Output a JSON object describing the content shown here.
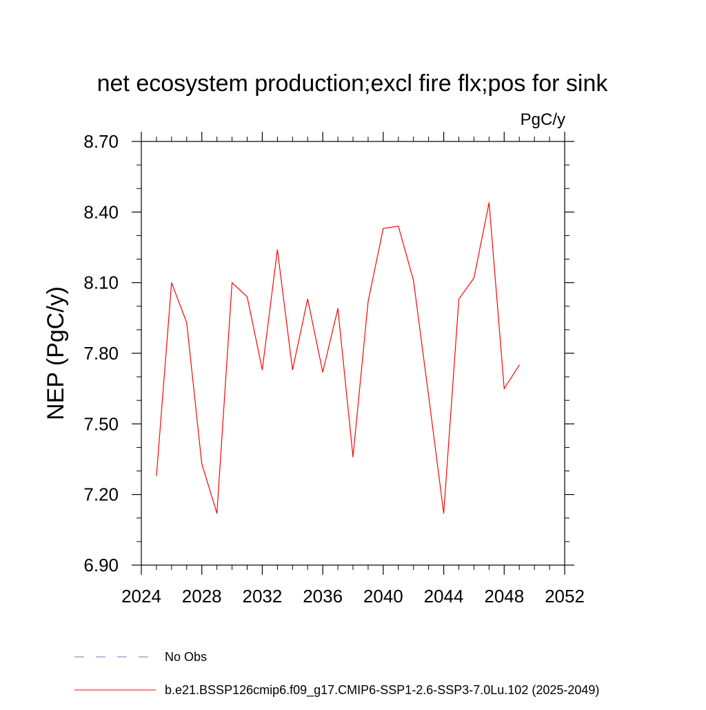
{
  "chart_data": {
    "type": "line",
    "title": "net ecosystem production;excl fire flx;pos for sink",
    "units": "PgC/y",
    "ylabel": "NEP  (PgC/y)",
    "xlabel": "",
    "xlim": [
      2024,
      2052
    ],
    "ylim": [
      6.9,
      8.7
    ],
    "x_ticks": [
      {
        "value": 2024,
        "label": "2024"
      },
      {
        "value": 2028,
        "label": "2028"
      },
      {
        "value": 2032,
        "label": "2032"
      },
      {
        "value": 2036,
        "label": "2036"
      },
      {
        "value": 2040,
        "label": "2040"
      },
      {
        "value": 2044,
        "label": "2044"
      },
      {
        "value": 2048,
        "label": "2048"
      },
      {
        "value": 2052,
        "label": "2052"
      }
    ],
    "y_ticks": [
      {
        "value": 6.9,
        "label": "6.90"
      },
      {
        "value": 7.2,
        "label": "7.20"
      },
      {
        "value": 7.5,
        "label": "7.50"
      },
      {
        "value": 7.8,
        "label": "7.80"
      },
      {
        "value": 8.1,
        "label": "8.10"
      },
      {
        "value": 8.4,
        "label": "8.40"
      },
      {
        "value": 8.7,
        "label": "8.70"
      }
    ],
    "x_minor_step": 1,
    "y_minor_step": 0.1,
    "grid": false,
    "legend_position": "bottom",
    "series": [
      {
        "name": "b.e21.BSSP126cmip6.f09_g17.CMIP6-SSP1-2.6-SSP3-7.0Lu.102 (2025-2049)",
        "color": "#ff0000",
        "style": "solid",
        "x": [
          2025,
          2026,
          2027,
          2028,
          2029,
          2030,
          2031,
          2032,
          2033,
          2034,
          2035,
          2036,
          2037,
          2038,
          2039,
          2040,
          2041,
          2042,
          2043,
          2044,
          2045,
          2046,
          2047,
          2048,
          2049
        ],
        "values": [
          7.28,
          8.1,
          7.93,
          7.33,
          7.12,
          8.1,
          8.04,
          7.73,
          8.24,
          7.73,
          8.03,
          7.72,
          7.99,
          7.36,
          8.02,
          8.33,
          8.34,
          8.11,
          7.62,
          7.12,
          8.03,
          8.12,
          8.44,
          7.65,
          7.75
        ]
      }
    ],
    "legend": [
      {
        "label": "No Obs",
        "color": "#7b6fc9",
        "style": "dashed"
      },
      {
        "label": "b.e21.BSSP126cmip6.f09_g17.CMIP6-SSP1-2.6-SSP3-7.0Lu.102 (2025-2049)",
        "color": "#ff0000",
        "style": "solid"
      }
    ]
  }
}
